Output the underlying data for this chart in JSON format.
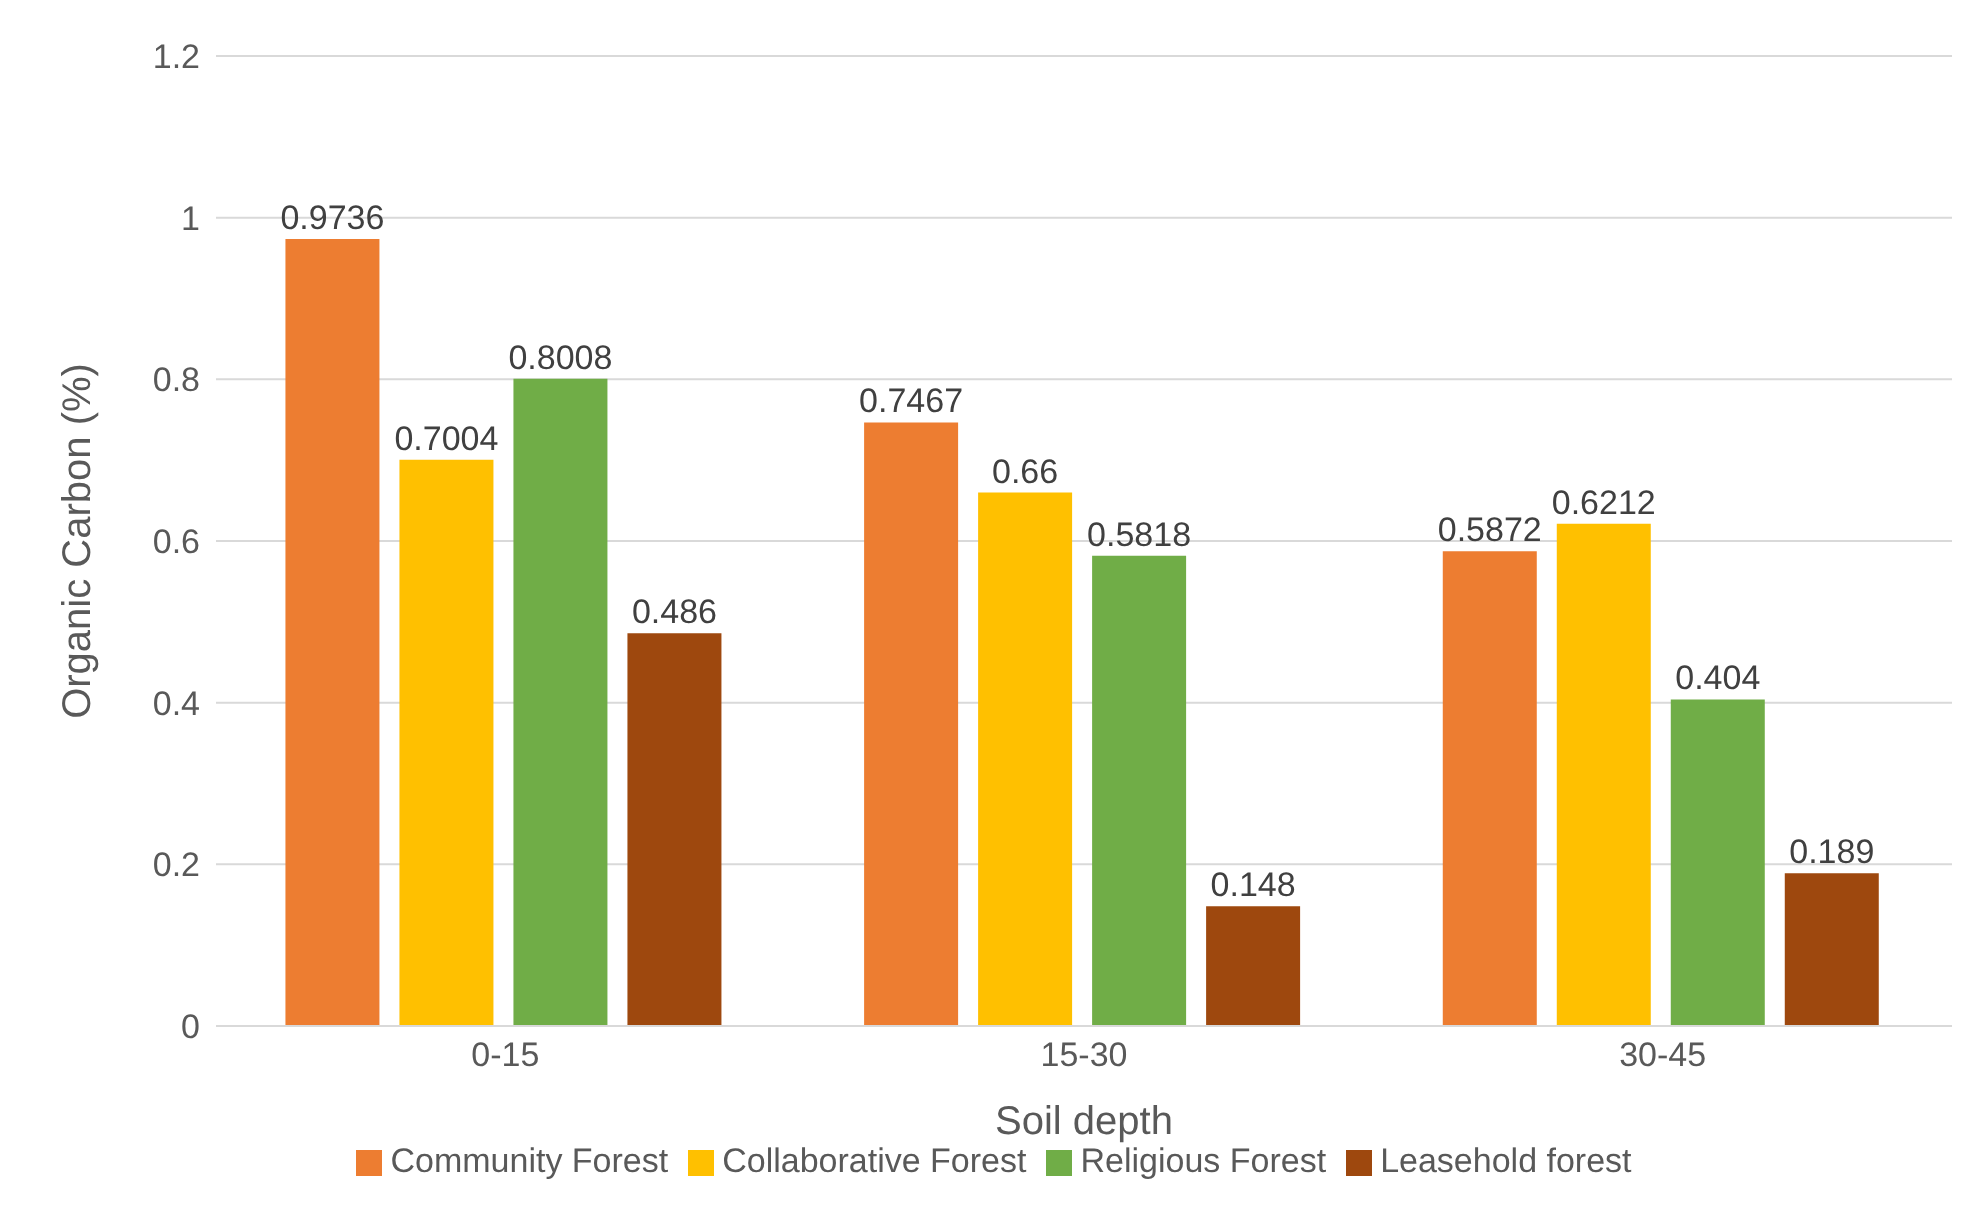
{
  "chart_data": {
    "type": "bar",
    "xlabel": "Soil depth",
    "ylabel": "Organic Carbon (%)",
    "categories": [
      "0-15",
      "15-30",
      "30-45"
    ],
    "series": [
      {
        "name": "Community Forest",
        "color": "#ed7d31",
        "values": [
          0.9736,
          0.7467,
          0.5872
        ]
      },
      {
        "name": "Collaborative Forest",
        "color": "#ffc000",
        "values": [
          0.7004,
          0.66,
          0.6212
        ]
      },
      {
        "name": "Religious Forest",
        "color": "#70ad47",
        "values": [
          0.8008,
          0.5818,
          0.404
        ]
      },
      {
        "name": "Leasehold forest",
        "color": "#9e480e",
        "values": [
          0.486,
          0.148,
          0.189
        ]
      }
    ],
    "ylim": [
      0,
      1.2
    ],
    "yticks": [
      0,
      0.2,
      0.4,
      0.6,
      0.8,
      1,
      1.2
    ],
    "grid": "y",
    "legend": "bottom",
    "data_labels": true
  }
}
